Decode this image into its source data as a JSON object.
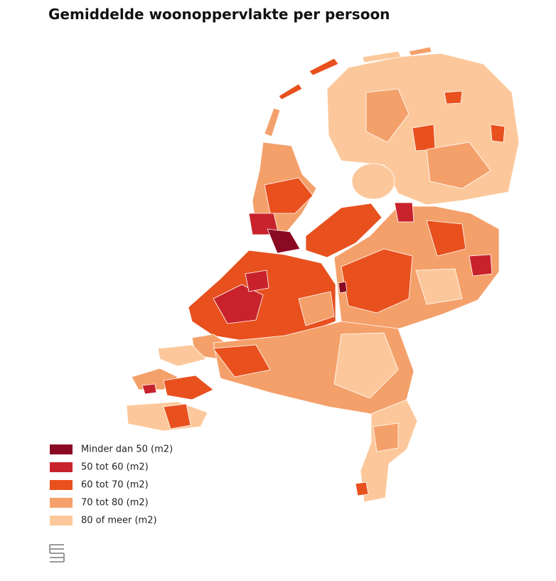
{
  "title": "Gemiddelde woonoppervlakte per persoon",
  "legend": [
    {
      "label": "Minder dan 50 (m2)",
      "color": "#8b0a23"
    },
    {
      "label": "50 tot 60 (m2)",
      "color": "#c8232c"
    },
    {
      "label": "60 tot 70 (m2)",
      "color": "#e8501e"
    },
    {
      "label": "70 tot 80 (m2)",
      "color": "#f4a06a"
    },
    {
      "label": "80 of meer (m2)",
      "color": "#fcc89b"
    }
  ]
}
